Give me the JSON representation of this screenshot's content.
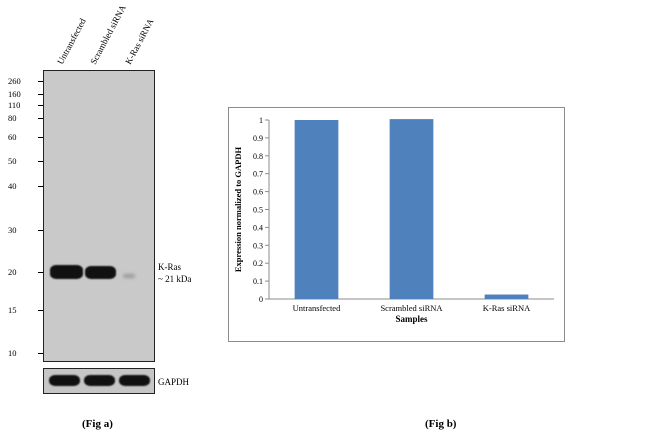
{
  "fig_a": {
    "lanes": [
      "Untransfected",
      "Scrambled siRNA",
      "K-Ras siRNA"
    ],
    "mw_markers": [
      "260",
      "160",
      "110",
      "80",
      "60",
      "50",
      "40",
      "30",
      "20",
      "15",
      "10"
    ],
    "target_label_line1": "K-Ras",
    "target_label_line2": "~ 21 kDa",
    "loading_label": "GAPDH",
    "caption": "(Fig a)"
  },
  "fig_b": {
    "caption": "(Fig b)"
  },
  "chart_data": {
    "type": "bar",
    "categories": [
      "Untransfected",
      "Scrambled siRNA",
      "K-Ras siRNA"
    ],
    "values": [
      1.0,
      1.005,
      0.025
    ],
    "title": "",
    "xlabel": "Samples",
    "ylabel": "Expression  normalized to GAPDH",
    "ylim": [
      0,
      1
    ],
    "yticks": [
      "0",
      "0.1",
      "0.2",
      "0.3",
      "0.4",
      "0.5",
      "0.6",
      "0.7",
      "0.8",
      "0.9",
      "1"
    ],
    "bar_color": "#4f81bd",
    "grid": false,
    "legend": "none"
  }
}
